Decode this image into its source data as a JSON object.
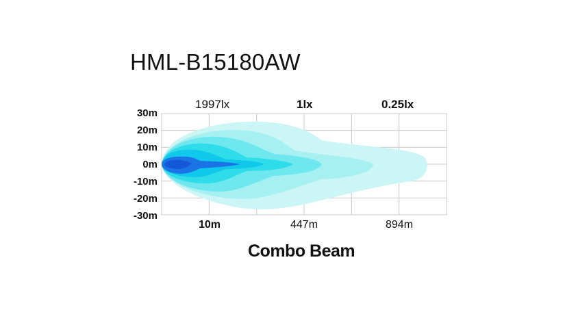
{
  "title": "HML-B15180AW",
  "beam_name": "Combo Beam",
  "lux_labels": [
    {
      "text": "1997lx",
      "bold": false
    },
    {
      "text": "1lx",
      "bold": true
    },
    {
      "text": "0.25lx",
      "bold": true
    }
  ],
  "chart_data": {
    "type": "area",
    "title": "HML-B15180AW",
    "subtitle": "Combo Beam",
    "ylabel": "",
    "xlabel": "",
    "y_ticks": [
      "30m",
      "20m",
      "10m",
      "0m",
      "-10m",
      "-20m",
      "-30m"
    ],
    "ylim": [
      -30,
      30
    ],
    "x_ticks": [
      "10m",
      "447m",
      "894m"
    ],
    "grid": true,
    "isolux_labels": [
      "1997lx",
      "1lx",
      "0.25lx"
    ],
    "colors": {
      "zone_0_25lx": "#ccf6f6",
      "zone_1lx": "#a6f0f2",
      "zone_mid": "#6fe7ee",
      "zone_high": "#2fdcea",
      "zone_core": "#0fc8ea",
      "zone_hot": "#1a74e6",
      "zone_peak": "#1458d8",
      "grid": "#c8c8c8"
    }
  }
}
